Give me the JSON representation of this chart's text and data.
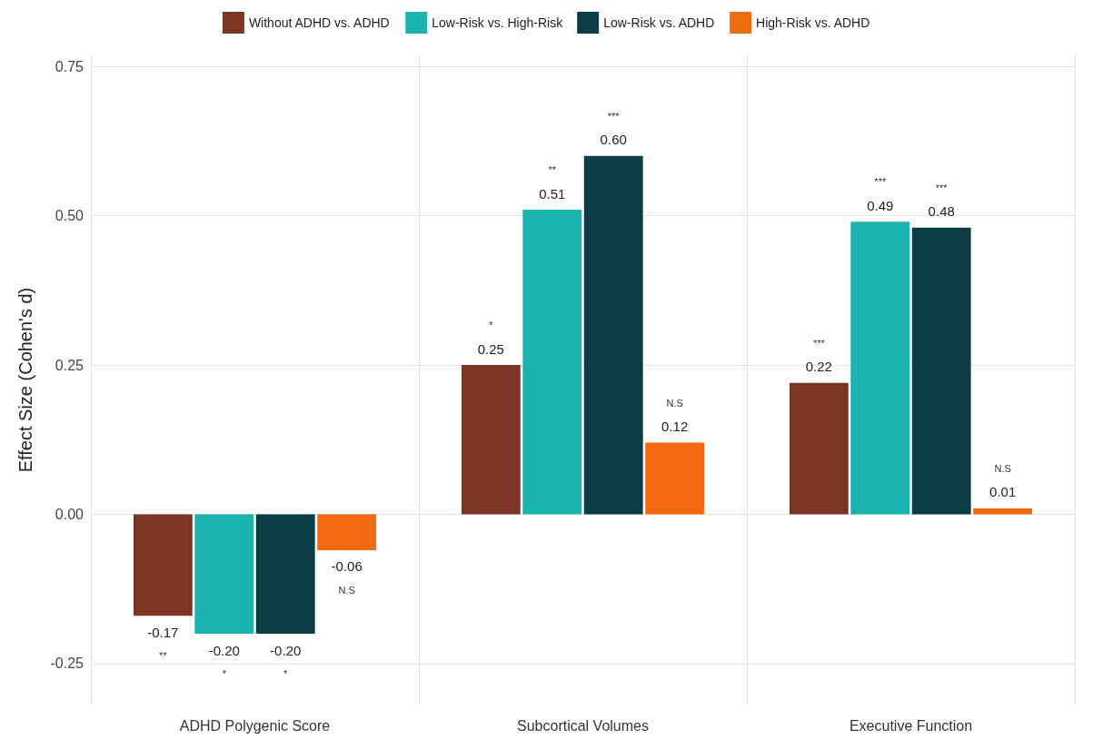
{
  "chart_data": {
    "type": "bar",
    "ylabel": "Effect Size (Cohen's d)",
    "categories": [
      "ADHD Polygenic Score",
      "Subcortical Volumes",
      "Executive Function"
    ],
    "series": [
      {
        "name": "Without ADHD vs. ADHD",
        "color": "#7a3524",
        "values": [
          -0.17,
          0.25,
          0.22
        ],
        "value_labels": [
          "-0.17",
          "0.25",
          "0.22"
        ]
      },
      {
        "name": "Low-Risk vs. High-Risk",
        "color": "#1bb3b0",
        "values": [
          -0.2,
          0.51,
          0.49
        ],
        "value_labels": [
          "-0.20",
          "0.51",
          "0.49"
        ]
      },
      {
        "name": "Low-Risk vs. ADHD",
        "color": "#0b3d47",
        "values": [
          -0.2,
          0.6,
          0.48
        ],
        "value_labels": [
          "-0.20",
          "0.60",
          "0.48"
        ]
      },
      {
        "name": "High-Risk vs. ADHD",
        "color": "#f26a0f",
        "values": [
          -0.06,
          0.12,
          0.01
        ],
        "value_labels": [
          "-0.06",
          "0.12",
          "0.01"
        ]
      }
    ],
    "ylim": [
      -0.32,
      0.77
    ],
    "yticks": [
      {
        "value": -0.25,
        "label": "-0.25"
      },
      {
        "value": 0,
        "label": "0.00"
      },
      {
        "value": 0.25,
        "label": "0.25"
      },
      {
        "value": 0.5,
        "label": "0.50"
      },
      {
        "value": 0.75,
        "label": "0.75"
      }
    ],
    "grid": true,
    "legend": "top",
    "annotations": [
      "**",
      "*",
      "*",
      "N.S",
      "*",
      "**",
      "***",
      "N.S",
      "***",
      "***",
      "***",
      "N.S"
    ]
  }
}
